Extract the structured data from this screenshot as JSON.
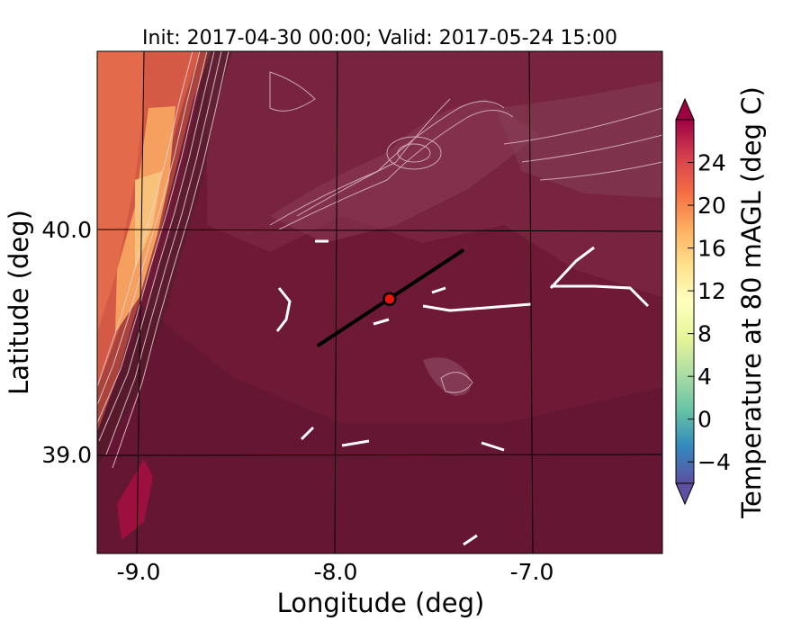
{
  "figure": {
    "title": "Init: 2017-04-30 00:00; Valid: 2017-05-24 15:00",
    "xlabel": "Longitude (deg)",
    "ylabel": "Latitude (deg)",
    "x_ticks": [
      "-9.0",
      "-8.0",
      "-7.0"
    ],
    "y_ticks": [
      "40.0",
      "39.0"
    ]
  },
  "colorbar": {
    "label": "Temperature at 80 mAGL (deg C)",
    "ticks": [
      "24",
      "20",
      "16",
      "12",
      "8",
      "4",
      "0",
      "−4"
    ],
    "tick_values": [
      24,
      20,
      16,
      12,
      8,
      4,
      0,
      -4
    ],
    "range": [
      -6,
      28
    ],
    "extend": "both",
    "colormap": "Spectral_r",
    "colors": [
      "#5e4fa2",
      "#3288bd",
      "#66c2a5",
      "#abdda4",
      "#e6f598",
      "#ffffbf",
      "#fee08b",
      "#fdae61",
      "#f46d43",
      "#d53e4f",
      "#9e0142"
    ]
  },
  "map": {
    "lon_range": [
      -9.25,
      -6.35
    ],
    "lat_range": [
      38.55,
      40.8
    ],
    "gridlines_lon": [
      -9.0,
      -8.0,
      -7.0
    ],
    "gridlines_lat": [
      39.0,
      40.0
    ],
    "dominant_color": "#7a1a3a",
    "coastal_colors": [
      "#e46448",
      "#f6a160"
    ],
    "cross_section": {
      "start": [
        -8.12,
        39.48
      ],
      "end": [
        -7.37,
        39.91
      ]
    },
    "point": {
      "lon": -7.75,
      "lat": 39.69,
      "color": "#e8150d"
    }
  }
}
